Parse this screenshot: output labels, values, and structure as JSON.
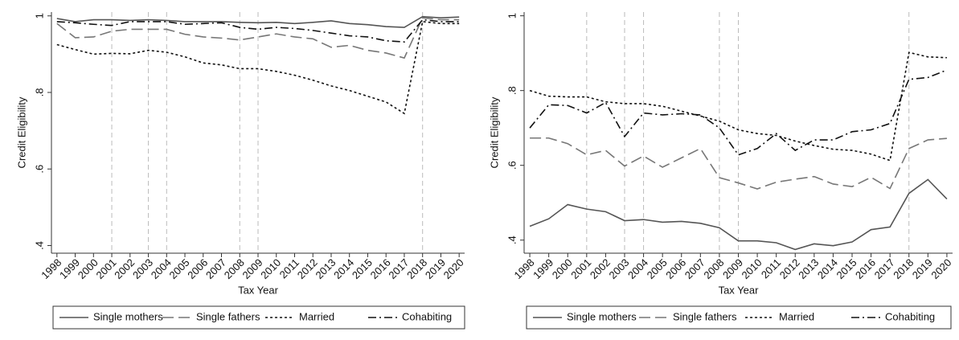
{
  "chart_data": [
    {
      "type": "line",
      "x_label": "Tax Year",
      "y_label": "Credit Eligibility",
      "x": [
        1998,
        1999,
        2000,
        2001,
        2002,
        2003,
        2004,
        2005,
        2006,
        2007,
        2008,
        2009,
        2010,
        2011,
        2012,
        2013,
        2014,
        2015,
        2016,
        2017,
        2018,
        2019,
        2020
      ],
      "xlim": [
        1997.7,
        2020.3
      ],
      "xticks": [
        1998,
        1999,
        2000,
        2001,
        2002,
        2003,
        2004,
        2005,
        2006,
        2007,
        2008,
        2009,
        2010,
        2011,
        2012,
        2013,
        2014,
        2015,
        2016,
        2017,
        2018,
        2019,
        2020
      ],
      "ylim": [
        0.38,
        1.01
      ],
      "yticks": [
        {
          "value": 0.4,
          "label": ".4"
        },
        {
          "value": 0.6,
          "label": ".6"
        },
        {
          "value": 0.8,
          "label": ".8"
        },
        1
      ],
      "vlines": [
        2001,
        2003,
        2004,
        2008,
        2009,
        2018
      ],
      "vline_color": "#bbbbbb",
      "legend": "bottom",
      "series": [
        {
          "name": "Single mothers",
          "color": "#555555",
          "line_style": "solid",
          "values": [
            0.993,
            0.985,
            0.99,
            0.99,
            0.988,
            0.99,
            0.988,
            0.985,
            0.985,
            0.985,
            0.983,
            0.982,
            0.983,
            0.98,
            0.983,
            0.987,
            0.98,
            0.977,
            0.972,
            0.97,
            0.998,
            0.995,
            0.997
          ]
        },
        {
          "name": "Single fathers",
          "color": "#777777",
          "line_style": "dashed",
          "values": [
            0.98,
            0.943,
            0.945,
            0.96,
            0.965,
            0.965,
            0.965,
            0.952,
            0.945,
            0.942,
            0.937,
            0.945,
            0.953,
            0.945,
            0.94,
            0.918,
            0.923,
            0.91,
            0.903,
            0.89,
            0.995,
            0.99,
            0.99
          ]
        },
        {
          "name": "Married",
          "color": "#111111",
          "line_style": "dotted",
          "values": [
            0.925,
            0.912,
            0.9,
            0.902,
            0.901,
            0.91,
            0.905,
            0.893,
            0.877,
            0.872,
            0.862,
            0.862,
            0.855,
            0.845,
            0.832,
            0.817,
            0.805,
            0.79,
            0.775,
            0.745,
            0.985,
            0.98,
            0.98
          ]
        },
        {
          "name": "Cohabiting",
          "color": "#111111",
          "line_style": "dashdot",
          "values": [
            0.985,
            0.982,
            0.978,
            0.975,
            0.985,
            0.985,
            0.985,
            0.978,
            0.98,
            0.982,
            0.97,
            0.965,
            0.97,
            0.967,
            0.962,
            0.955,
            0.948,
            0.945,
            0.935,
            0.932,
            0.99,
            0.985,
            0.985
          ]
        }
      ]
    },
    {
      "type": "line",
      "x_label": "Tax Year",
      "y_label": "Credit Eligibility",
      "x": [
        1998,
        1999,
        2000,
        2001,
        2002,
        2003,
        2004,
        2005,
        2006,
        2007,
        2008,
        2009,
        2010,
        2011,
        2012,
        2013,
        2014,
        2015,
        2016,
        2017,
        2018,
        2019,
        2020
      ],
      "xlim": [
        1997.7,
        2020.3
      ],
      "xticks": [
        1998,
        1999,
        2000,
        2001,
        2002,
        2003,
        2004,
        2005,
        2006,
        2007,
        2008,
        2009,
        2010,
        2011,
        2012,
        2013,
        2014,
        2015,
        2016,
        2017,
        2018,
        2019,
        2020
      ],
      "ylim": [
        0.365,
        1.01
      ],
      "yticks": [
        {
          "value": 0.4,
          "label": ".4"
        },
        {
          "value": 0.6,
          "label": ".6"
        },
        {
          "value": 0.8,
          "label": ".8"
        },
        1
      ],
      "vlines": [
        2001,
        2003,
        2004,
        2008,
        2009,
        2018
      ],
      "vline_color": "#bbbbbb",
      "legend": "bottom",
      "series": [
        {
          "name": "Single mothers",
          "color": "#555555",
          "line_style": "solid",
          "values": [
            0.437,
            0.457,
            0.495,
            0.483,
            0.476,
            0.452,
            0.455,
            0.448,
            0.45,
            0.445,
            0.433,
            0.398,
            0.398,
            0.393,
            0.375,
            0.39,
            0.385,
            0.395,
            0.428,
            0.435,
            0.525,
            0.562,
            0.51
          ]
        },
        {
          "name": "Single fathers",
          "color": "#777777",
          "line_style": "dashed",
          "values": [
            0.673,
            0.673,
            0.658,
            0.628,
            0.64,
            0.598,
            0.625,
            0.595,
            0.62,
            0.645,
            0.567,
            0.553,
            0.537,
            0.555,
            0.563,
            0.57,
            0.55,
            0.543,
            0.568,
            0.538,
            0.645,
            0.668,
            0.672
          ]
        },
        {
          "name": "Married",
          "color": "#111111",
          "line_style": "dotted",
          "values": [
            0.8,
            0.785,
            0.783,
            0.783,
            0.77,
            0.765,
            0.765,
            0.758,
            0.745,
            0.732,
            0.718,
            0.695,
            0.685,
            0.68,
            0.665,
            0.653,
            0.643,
            0.64,
            0.63,
            0.613,
            0.902,
            0.89,
            0.888
          ]
        },
        {
          "name": "Cohabiting",
          "color": "#111111",
          "line_style": "dashdot",
          "values": [
            0.7,
            0.762,
            0.76,
            0.74,
            0.768,
            0.677,
            0.74,
            0.735,
            0.738,
            0.735,
            0.7,
            0.628,
            0.645,
            0.685,
            0.64,
            0.668,
            0.668,
            0.69,
            0.695,
            0.712,
            0.83,
            0.835,
            0.855
          ]
        }
      ]
    }
  ]
}
